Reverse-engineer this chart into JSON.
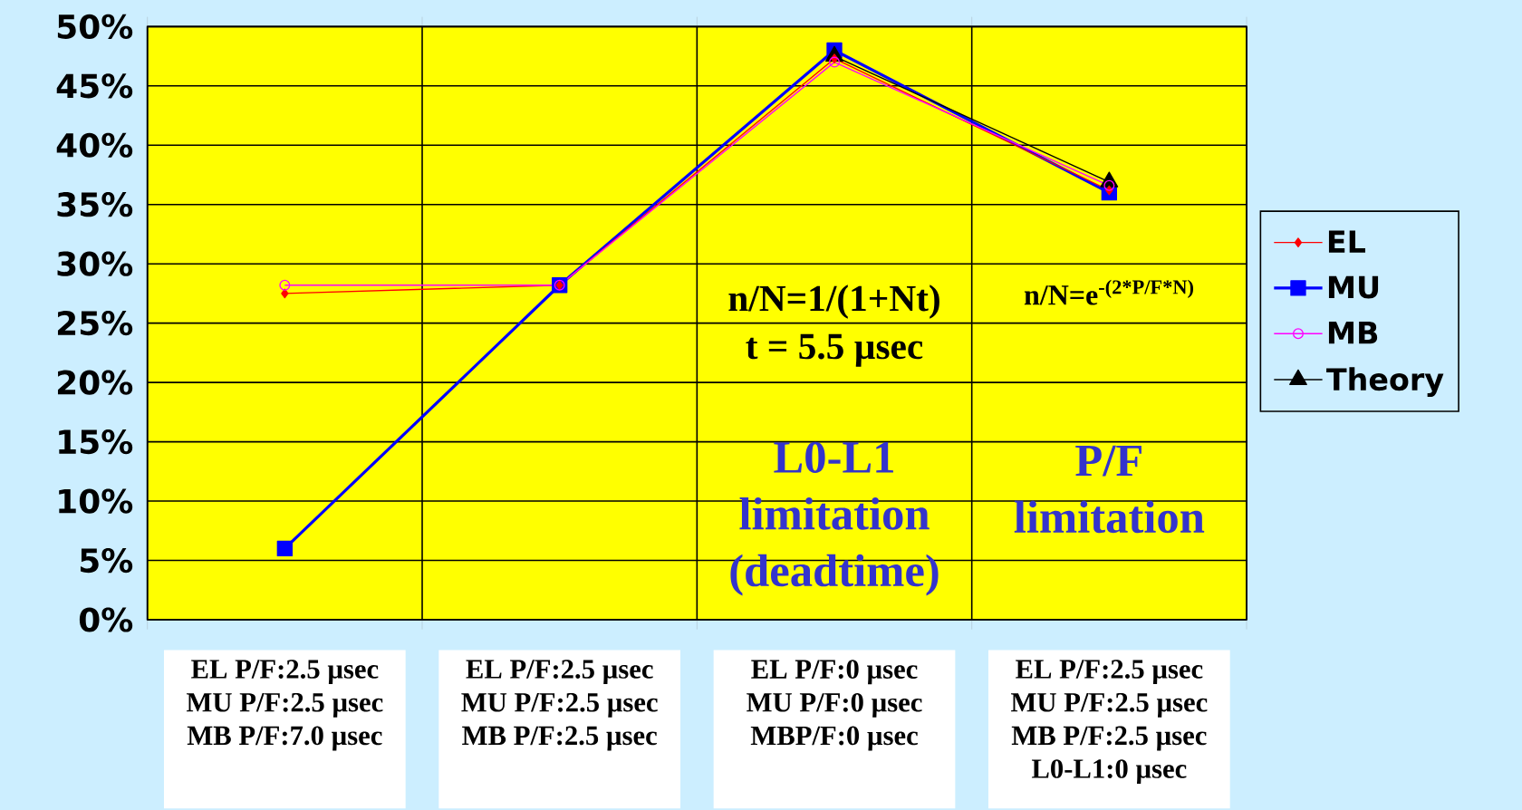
{
  "chart_data": {
    "type": "line",
    "categories": [
      "EL P/F:2.5 µsec MU P/F:2.5 µsec MB P/F:7.0 µsec",
      "EL P/F:2.5 µsec MU P/F:2.5 µsec MB P/F:2.5 µsec",
      "EL P/F:0 µsec MU P/F:0 µsec MBP/F:0 µsec",
      "EL P/F:2.5 µsec MU P/F:2.5 µsec MB P/F:2.5 µsec L0-L1:0 µsec"
    ],
    "series": [
      {
        "name": "EL",
        "color": "#ff0000",
        "marker": "diamond",
        "values": [
          27.5,
          28.2,
          47.3,
          36.2
        ]
      },
      {
        "name": "MU",
        "color": "#0000ff",
        "marker": "square",
        "values": [
          6.0,
          28.2,
          48.0,
          36.0
        ]
      },
      {
        "name": "MB",
        "color": "#ff00ff",
        "marker": "circle",
        "values": [
          28.2,
          28.2,
          47.0,
          36.6
        ]
      },
      {
        "name": "Theory",
        "color": "#000000",
        "marker": "triangle",
        "values": [
          null,
          null,
          47.5,
          36.9
        ]
      }
    ],
    "ylim": [
      0,
      50
    ],
    "yticks": [
      {
        "value": 0,
        "label": "0%"
      },
      {
        "value": 5,
        "label": "5%"
      },
      {
        "value": 10,
        "label": "10%"
      },
      {
        "value": 15,
        "label": "15%"
      },
      {
        "value": 20,
        "label": "20%"
      },
      {
        "value": 25,
        "label": "25%"
      },
      {
        "value": 30,
        "label": "30%"
      },
      {
        "value": 35,
        "label": "35%"
      },
      {
        "value": 40,
        "label": "40%"
      },
      {
        "value": 45,
        "label": "45%"
      },
      {
        "value": 50,
        "label": "50%"
      }
    ],
    "grid": true,
    "legend": "right",
    "annotations": [
      "n/N=1/(1+Nt)",
      "t = 5.5 µsec",
      "n/N=e$^{-(2*P/F*N)}$",
      "L0-L1 limitation (deadtime)",
      "P/F limitation"
    ]
  }
}
